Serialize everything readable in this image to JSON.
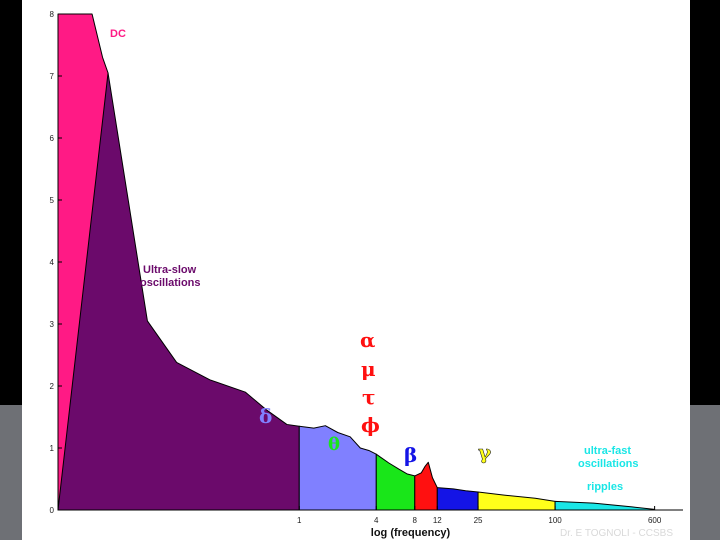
{
  "colors": {
    "dc": "#ff1a85",
    "ultra_slow": "#6b0a6b",
    "delta": "#8080ff",
    "theta": "#19e619",
    "alpha": "#ff1010",
    "beta": "#1414e6",
    "gamma": "#ffff1a",
    "ultra_fast": "#1ae6e6",
    "outline": "#000000",
    "background_dark": "#000000",
    "slab_gray": "#6e7075"
  },
  "chart_data": {
    "type": "area",
    "title": "",
    "xlabel": "log (frequency)",
    "ylabel": "",
    "xscale": "log",
    "ylim": [
      0,
      8
    ],
    "y_ticks": [
      "0",
      "1",
      "2",
      "3",
      "4",
      "5",
      "6",
      "7",
      "8"
    ],
    "x_ticks": [
      {
        "value": 1,
        "label": "1"
      },
      {
        "value": 4,
        "label": "4"
      },
      {
        "value": 8,
        "label": "8"
      },
      {
        "value": 12,
        "label": "12"
      },
      {
        "value": 25,
        "label": "25"
      },
      {
        "value": 100,
        "label": "100"
      },
      {
        "value": 600,
        "label": "600"
      }
    ],
    "x_domain": [
      0.013,
      1000
    ],
    "grid": false,
    "legend": "none",
    "series": [
      {
        "key": "dc",
        "points": [
          [
            0.013,
            0
          ],
          [
            0.013,
            8
          ],
          [
            0.024,
            8
          ],
          [
            0.029,
            7.3
          ],
          [
            0.032,
            7.05
          ]
        ]
      },
      {
        "key": "ultra_slow",
        "points": [
          [
            0.013,
            0
          ],
          [
            0.032,
            7.05
          ],
          [
            0.065,
            3.05
          ],
          [
            0.11,
            2.38
          ],
          [
            0.2,
            2.1
          ],
          [
            0.38,
            1.9
          ],
          [
            0.55,
            1.62
          ],
          [
            0.8,
            1.38
          ],
          [
            1.0,
            1.35
          ]
        ]
      },
      {
        "key": "delta",
        "points": [
          [
            1.0,
            1.35
          ],
          [
            1.3,
            1.32
          ],
          [
            1.6,
            1.36
          ],
          [
            2.0,
            1.25
          ],
          [
            2.5,
            1.18
          ],
          [
            3.0,
            1.0
          ],
          [
            3.5,
            0.96
          ],
          [
            4.0,
            0.9
          ]
        ]
      },
      {
        "key": "theta",
        "points": [
          [
            4.0,
            0.9
          ],
          [
            5.0,
            0.76
          ],
          [
            6.0,
            0.66
          ],
          [
            7.0,
            0.58
          ],
          [
            8.0,
            0.55
          ]
        ]
      },
      {
        "key": "alpha",
        "points": [
          [
            8.0,
            0.55
          ],
          [
            9.0,
            0.6
          ],
          [
            9.6,
            0.7
          ],
          [
            10.2,
            0.77
          ],
          [
            11.0,
            0.52
          ],
          [
            12.0,
            0.36
          ]
        ]
      },
      {
        "key": "beta",
        "points": [
          [
            12.0,
            0.36
          ],
          [
            16.0,
            0.34
          ],
          [
            20.0,
            0.31
          ],
          [
            25.0,
            0.29
          ]
        ]
      },
      {
        "key": "gamma",
        "points": [
          [
            25.0,
            0.29
          ],
          [
            40.0,
            0.24
          ],
          [
            70.0,
            0.19
          ],
          [
            100.0,
            0.14
          ]
        ]
      },
      {
        "key": "ultra_fast",
        "points": [
          [
            100.0,
            0.14
          ],
          [
            200.0,
            0.11
          ],
          [
            400.0,
            0.05
          ],
          [
            600.0,
            0.01
          ]
        ]
      }
    ],
    "annotations": {
      "dc": "DC",
      "ultra_slow_line1": "Ultra-slow",
      "ultra_slow_line2": "oscillations",
      "delta": "δ",
      "theta": "θ",
      "alpha": "α",
      "mu": "μ",
      "tau": "τ",
      "phi": "ϕ",
      "beta": "β",
      "gamma": "γ",
      "ultra_fast_line1": "ultra-fast",
      "ultra_fast_line2": "oscillations",
      "ripples": "ripples"
    }
  },
  "credit": "Dr. E TOGNOLI - CCSBS"
}
